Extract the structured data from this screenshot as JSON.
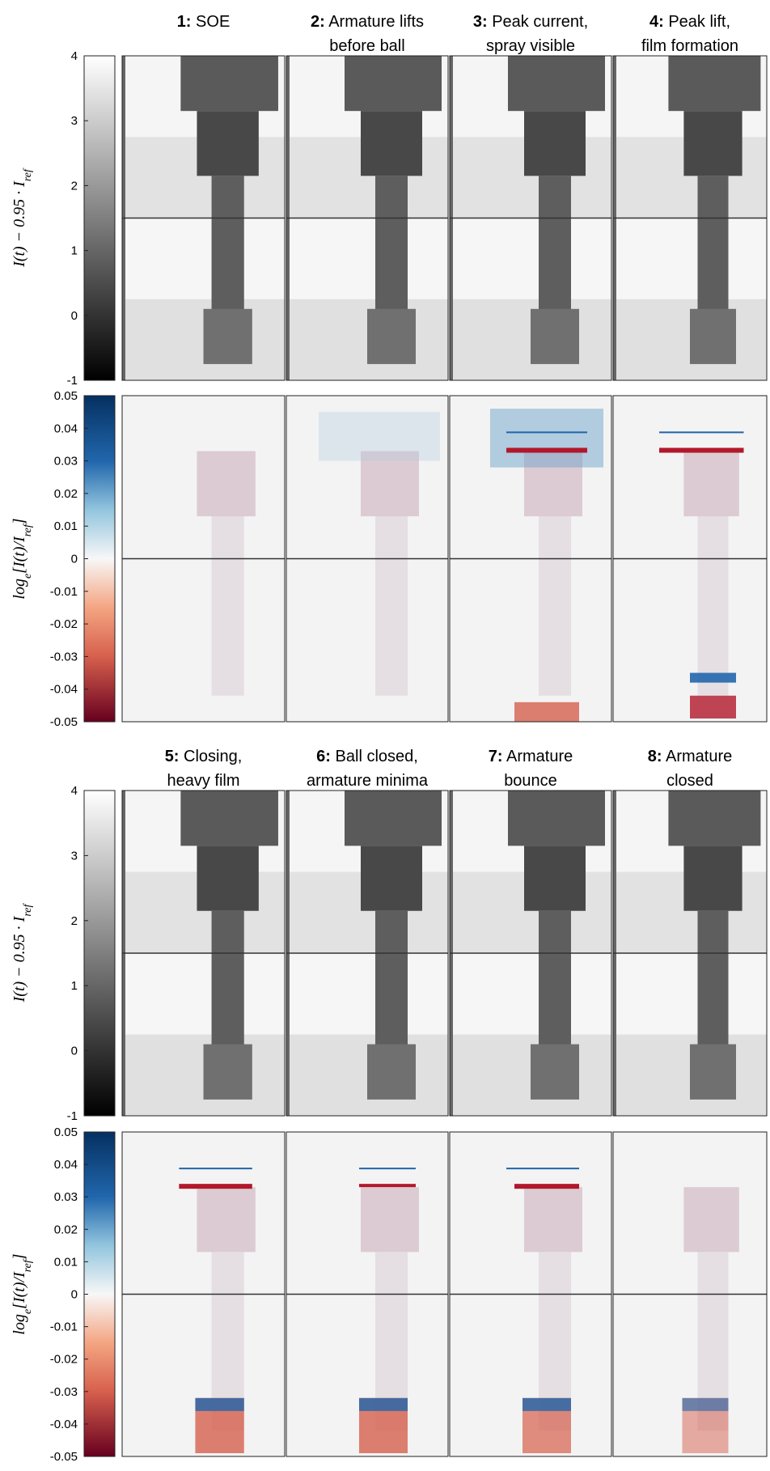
{
  "colorbars": {
    "intensity": {
      "label_parts": [
        {
          "text": "I(t) − 0.95 · I"
        },
        {
          "text": "ref",
          "sub": true
        }
      ],
      "lim": [
        -1,
        4
      ],
      "ticks": [
        4,
        3,
        2,
        1,
        0,
        -1
      ],
      "colormap": "gray"
    },
    "log_ratio": {
      "label_parts": [
        {
          "text": "log"
        },
        {
          "text": "e",
          "sub": true
        },
        {
          "text": "[I(t)/I"
        },
        {
          "text": "ref",
          "sub": true
        },
        {
          "text": "]"
        }
      ],
      "lim": [
        -0.05,
        0.05
      ],
      "ticks": [
        0.05,
        0.04,
        0.03,
        0.02,
        0.01,
        0,
        -0.01,
        -0.02,
        -0.03,
        -0.04,
        -0.05
      ],
      "colormap": "red-blue"
    }
  },
  "rows": [
    {
      "columns": [
        {
          "number": "1:",
          "lines": [
            "SOE"
          ]
        },
        {
          "number": "2:",
          "lines": [
            "Armature lifts",
            "before ball"
          ]
        },
        {
          "number": "3:",
          "lines": [
            "Peak current,",
            "spray visible"
          ]
        },
        {
          "number": "4:",
          "lines": [
            "Peak lift,",
            "film formation"
          ]
        }
      ]
    },
    {
      "columns": [
        {
          "number": "5:",
          "lines": [
            "Closing,",
            "heavy film"
          ]
        },
        {
          "number": "6:",
          "lines": [
            "Ball closed,",
            "armature minima"
          ]
        },
        {
          "number": "7:",
          "lines": [
            "Armature",
            "bounce"
          ]
        },
        {
          "number": "8:",
          "lines": [
            "Armature",
            "closed"
          ]
        }
      ]
    }
  ]
}
